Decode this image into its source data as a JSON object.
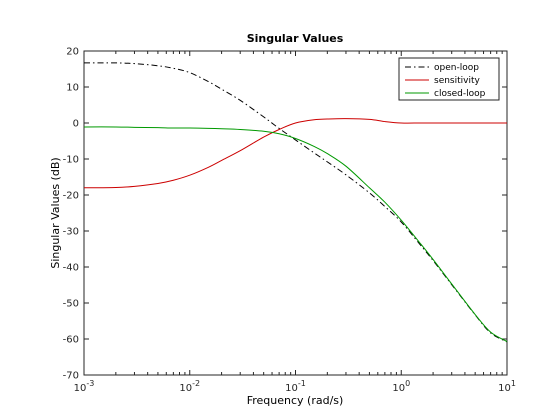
{
  "chart_data": {
    "type": "line",
    "title": "Singular Values",
    "xlabel": "Frequency (rad/s)",
    "ylabel": "Singular Values (dB)",
    "x_scale": "log",
    "xlim": [
      0.001,
      10
    ],
    "ylim": [
      -70,
      20
    ],
    "x_ticks": [
      {
        "base": "10",
        "exp": "-3",
        "value": 0.001
      },
      {
        "base": "10",
        "exp": "-2",
        "value": 0.01
      },
      {
        "base": "10",
        "exp": "-1",
        "value": 0.1
      },
      {
        "base": "10",
        "exp": "0",
        "value": 1
      },
      {
        "base": "10",
        "exp": "1",
        "value": 10
      }
    ],
    "y_ticks": [
      {
        "label": "20",
        "value": 20
      },
      {
        "label": "10",
        "value": 10
      },
      {
        "label": "0",
        "value": 0
      },
      {
        "label": "-10",
        "value": -10
      },
      {
        "label": "-20",
        "value": -20
      },
      {
        "label": "-30",
        "value": -30
      },
      {
        "label": "-40",
        "value": -40
      },
      {
        "label": "-50",
        "value": -50
      },
      {
        "label": "-60",
        "value": -60
      },
      {
        "label": "-70",
        "value": -70
      }
    ],
    "grid": false,
    "legend_position": "top-right",
    "series": [
      {
        "name": "open-loop",
        "color": "#000000",
        "style": "dash-dot",
        "x": [
          0.001,
          0.002,
          0.003,
          0.005,
          0.007,
          0.01,
          0.015,
          0.02,
          0.03,
          0.05,
          0.07,
          0.1,
          0.15,
          0.2,
          0.3,
          0.5,
          0.7,
          1,
          1.5,
          2,
          3,
          5,
          7,
          10
        ],
        "y": [
          16.7,
          16.7,
          16.5,
          15.9,
          15.2,
          14,
          11.5,
          9.4,
          6.3,
          1.7,
          -1.5,
          -4.7,
          -8.3,
          -10.8,
          -14.4,
          -19.4,
          -23.2,
          -27.5,
          -33.7,
          -38.2,
          -44.9,
          -53.3,
          -58.3,
          -60.8
        ]
      },
      {
        "name": "sensitivity",
        "color": "#cc0000",
        "style": "solid",
        "x": [
          0.001,
          0.002,
          0.003,
          0.005,
          0.007,
          0.01,
          0.015,
          0.02,
          0.03,
          0.05,
          0.07,
          0.1,
          0.15,
          0.2,
          0.3,
          0.5,
          0.7,
          1,
          1.5,
          2,
          3,
          5,
          7,
          10
        ],
        "y": [
          -18,
          -17.9,
          -17.6,
          -16.8,
          -15.9,
          -14.5,
          -12.3,
          -10.4,
          -7.7,
          -3.9,
          -1.8,
          0,
          0.9,
          1.1,
          1.2,
          1,
          0.4,
          0,
          0,
          0,
          0,
          0,
          0,
          0
        ]
      },
      {
        "name": "closed-loop",
        "color": "#009900",
        "style": "solid",
        "x": [
          0.001,
          0.002,
          0.003,
          0.005,
          0.007,
          0.01,
          0.015,
          0.02,
          0.03,
          0.05,
          0.07,
          0.1,
          0.15,
          0.2,
          0.3,
          0.5,
          0.7,
          1,
          1.5,
          2,
          3,
          5,
          7,
          10
        ],
        "y": [
          -1.1,
          -1.1,
          -1.2,
          -1.3,
          -1.4,
          -1.4,
          -1.5,
          -1.6,
          -1.8,
          -2.3,
          -3,
          -4.3,
          -6.5,
          -8.5,
          -12,
          -18,
          -22,
          -27,
          -33.3,
          -37.9,
          -44.7,
          -53.2,
          -58.1,
          -60.7
        ]
      }
    ]
  }
}
